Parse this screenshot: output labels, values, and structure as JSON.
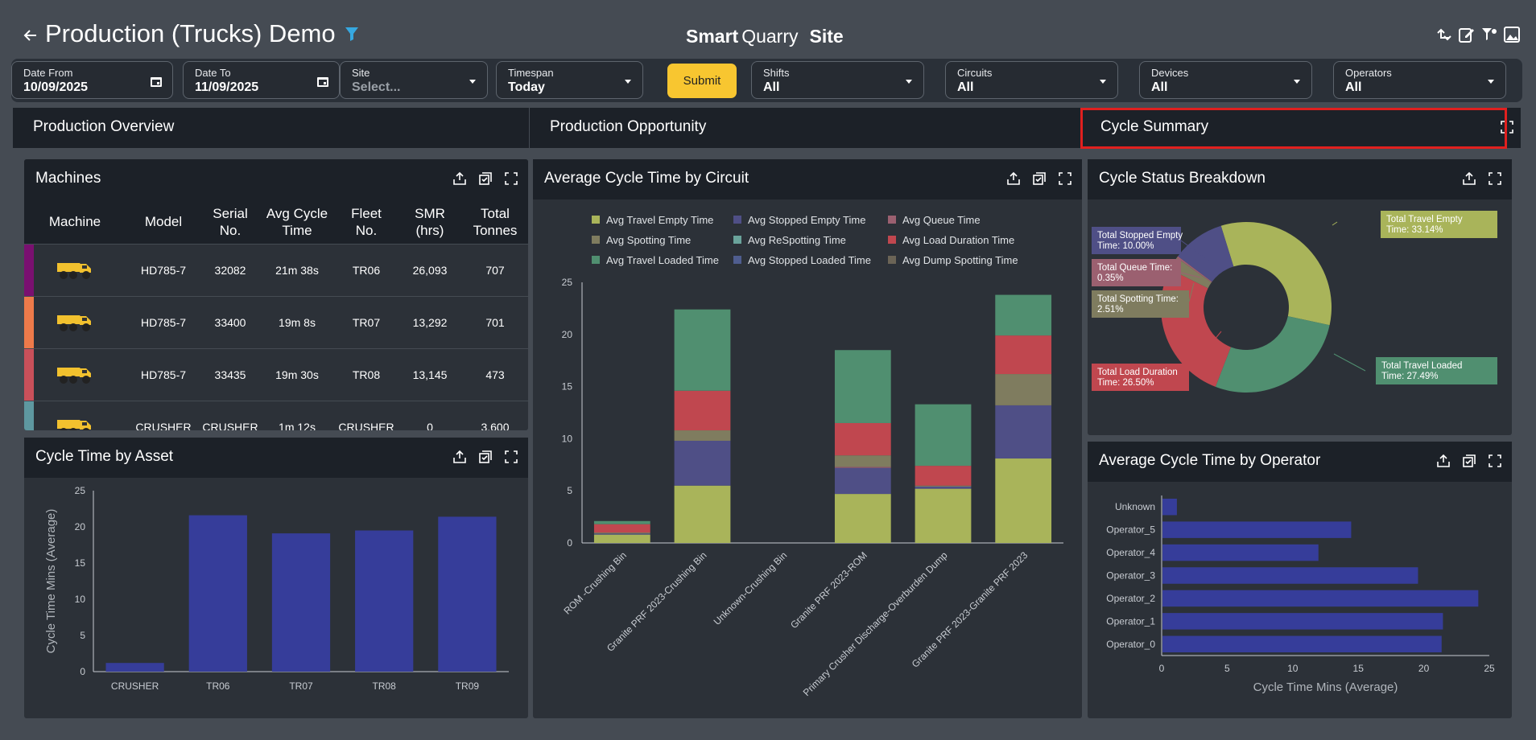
{
  "header": {
    "title": "Production (Trucks) Demo",
    "logo_smart": "Smart",
    "logo_quarry": "Quarry",
    "logo_site": "Site"
  },
  "filters": {
    "date_from_label": "Date From",
    "date_from_value": "10/09/2025",
    "date_to_label": "Date To",
    "date_to_value": "11/09/2025",
    "site_label": "Site",
    "site_placeholder": "Select...",
    "timespan_label": "Timespan",
    "timespan_value": "Today",
    "submit_label": "Submit",
    "shifts_label": "Shifts",
    "shifts_value": "All",
    "circuits_label": "Circuits",
    "circuits_value": "All",
    "devices_label": "Devices",
    "devices_value": "All",
    "operators_label": "Operators",
    "operators_value": "All"
  },
  "tabs": [
    "Production Overview",
    "Production Opportunity",
    "Cycle Summary"
  ],
  "machines": {
    "title": "Machines",
    "columns": [
      "Machine",
      "Model",
      "Serial No.",
      "Avg Cycle Time",
      "Fleet No.",
      "SMR (hrs)",
      "Total Tonnes"
    ],
    "rows": [
      {
        "color": "#7a1070",
        "model": "HD785-7",
        "serial": "32082",
        "avg": "21m 38s",
        "fleet": "TR06",
        "smr": "26,093",
        "tonnes": "707"
      },
      {
        "color": "#ee7a4a",
        "model": "HD785-7",
        "serial": "33400",
        "avg": "19m 8s",
        "fleet": "TR07",
        "smr": "13,292",
        "tonnes": "701"
      },
      {
        "color": "#c9505a",
        "model": "HD785-7",
        "serial": "33435",
        "avg": "19m 30s",
        "fleet": "TR08",
        "smr": "13,145",
        "tonnes": "473"
      },
      {
        "color": "#5e98a0",
        "model": "CRUSHER",
        "serial": "CRUSHER",
        "avg": "1m 12s",
        "fleet": "CRUSHER",
        "smr": "0",
        "tonnes": "3,600"
      }
    ]
  },
  "cycle_asset_title": "Cycle Time by Asset",
  "avg_circuit_title": "Average Cycle Time by Circuit",
  "status_title": "Cycle Status Breakdown",
  "operator_title": "Average Cycle Time by Operator",
  "chart_data": [
    {
      "type": "bar",
      "title": "Cycle Time by Asset",
      "categories": [
        "CRUSHER",
        "TR06",
        "TR07",
        "TR08",
        "TR09"
      ],
      "values": [
        1.2,
        21.6,
        19.1,
        19.5,
        21.4
      ],
      "ylabel": "Cycle Time Mins (Average)",
      "ylim": [
        0,
        25
      ],
      "yticks": [
        0,
        5,
        10,
        15,
        20,
        25
      ],
      "color": "#363d9a"
    },
    {
      "type": "bar",
      "stacked": true,
      "title": "Average Cycle Time by Circuit",
      "categories": [
        "ROM -Crushing Bin",
        "Granite PRF 2023-Crushing Bin",
        "Unknown-Crushing Bin",
        "Granite PRF 2023-ROM",
        "Primary Crusher Discharge-Overburden Dump",
        "Granite PRF 2023-Granite PRF 2023"
      ],
      "ylim": [
        0,
        25
      ],
      "yticks": [
        0,
        5,
        10,
        15,
        20,
        25
      ],
      "legend": "top",
      "series": [
        {
          "name": "Avg Travel Empty Time",
          "color": "#a9b45a",
          "values": [
            0.8,
            5.5,
            0,
            4.7,
            5.2,
            8.1
          ]
        },
        {
          "name": "Avg Stopped Empty Time",
          "color": "#4f4f86",
          "values": [
            0.1,
            4.3,
            0,
            2.5,
            0.2,
            5.1
          ]
        },
        {
          "name": "Avg Queue Time",
          "color": "#9b6070",
          "values": [
            0,
            0,
            0,
            0.1,
            0,
            0
          ]
        },
        {
          "name": "Avg Spotting Time",
          "color": "#7f7c5f",
          "values": [
            0.1,
            1.0,
            0,
            1.1,
            0.1,
            3.0
          ]
        },
        {
          "name": "Avg ReSpotting Time",
          "color": "#6aa39b",
          "values": [
            0,
            0,
            0,
            0,
            0,
            0
          ]
        },
        {
          "name": "Avg Load Duration Time",
          "color": "#c0474f",
          "values": [
            0.8,
            3.8,
            0,
            3.1,
            1.9,
            3.7
          ]
        },
        {
          "name": "Avg Travel Loaded Time",
          "color": "#508f70",
          "values": [
            0.3,
            7.8,
            0,
            7.0,
            5.9,
            3.9
          ]
        },
        {
          "name": "Avg Stopped Loaded Time",
          "color": "#4f5d8f",
          "values": [
            0,
            0,
            0,
            0,
            0,
            0
          ]
        },
        {
          "name": "Avg Dump Spotting Time",
          "color": "#6b6456",
          "values": [
            0,
            0,
            0,
            0,
            0,
            0
          ]
        }
      ]
    },
    {
      "type": "pie",
      "donut": true,
      "title": "Cycle Status Breakdown",
      "slices": [
        {
          "label": "Total Travel Empty Time:",
          "pct": "33.14%",
          "value": 33.14,
          "color": "#a9b45a"
        },
        {
          "label": "Total Travel Loaded Time:",
          "pct": "27.49%",
          "value": 27.49,
          "color": "#508f70"
        },
        {
          "label": "Total Load Duration Time:",
          "pct": "26.50%",
          "value": 26.5,
          "color": "#c0474f"
        },
        {
          "label": "Total Spotting Time:",
          "pct": "2.51%",
          "value": 2.51,
          "color": "#7f7c5f"
        },
        {
          "label": "Total Queue Time:",
          "pct": "0.35%",
          "value": 0.35,
          "color": "#9b6070"
        },
        {
          "label": "Total Stopped Empty Time:",
          "pct": "10.00%",
          "value": 10.0,
          "color": "#4f4f86"
        }
      ]
    },
    {
      "type": "bar",
      "orientation": "horizontal",
      "title": "Average Cycle Time by Operator",
      "categories": [
        "Unknown",
        "Operator_5",
        "Operator_4",
        "Operator_3",
        "Operator_2",
        "Operator_1",
        "Operator_0"
      ],
      "values": [
        1.1,
        14.4,
        11.9,
        19.5,
        24.1,
        21.4,
        21.3
      ],
      "xlabel": "Cycle Time Mins (Average)",
      "xlim": [
        0,
        25
      ],
      "xticks": [
        0,
        5,
        10,
        15,
        20,
        25
      ],
      "color": "#363d9a"
    }
  ]
}
